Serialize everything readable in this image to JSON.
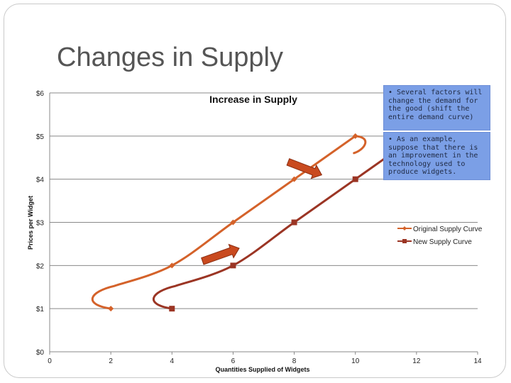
{
  "slide": {
    "title": "Changes in Supply"
  },
  "notes": [
    "• Several factors will change the demand for the good (shift the entire demand curve)",
    "• As an example, suppose that there is an improvement in the technology used to produce widgets."
  ],
  "colors": {
    "original": "#d4622a",
    "new": "#9b3524",
    "grid": "#888888",
    "arrow": "#c94a1f",
    "note_bg": "#7b9fe6"
  },
  "chart_data": {
    "type": "scatter",
    "title": "Increase in Supply",
    "xlabel": "Quantities Supplied of Widgets",
    "ylabel": "Prices per Widget",
    "xlim": [
      0,
      14
    ],
    "ylim": [
      0,
      6
    ],
    "x_ticks": [
      "0",
      "2",
      "4",
      "6",
      "8",
      "10",
      "12",
      "14"
    ],
    "y_ticks": [
      "$0",
      "$1",
      "$2",
      "$3",
      "$4",
      "$5",
      "$6"
    ],
    "grid": "horizontal",
    "legend_position": "right",
    "series": [
      {
        "name": "Original Supply Curve",
        "x": [
          2,
          4,
          6,
          8,
          10
        ],
        "y": [
          1,
          2,
          3,
          4,
          5
        ],
        "marker": "diamond"
      },
      {
        "name": "New Supply Curve",
        "x": [
          4,
          6,
          8,
          10,
          12
        ],
        "y": [
          1,
          2,
          3,
          4,
          5
        ],
        "marker": "square"
      }
    ],
    "arrows": [
      {
        "from": [
          5,
          2.1
        ],
        "to": [
          6.2,
          2.4
        ]
      },
      {
        "from": [
          7.8,
          4.4
        ],
        "to": [
          8.9,
          4.1
        ]
      }
    ]
  }
}
